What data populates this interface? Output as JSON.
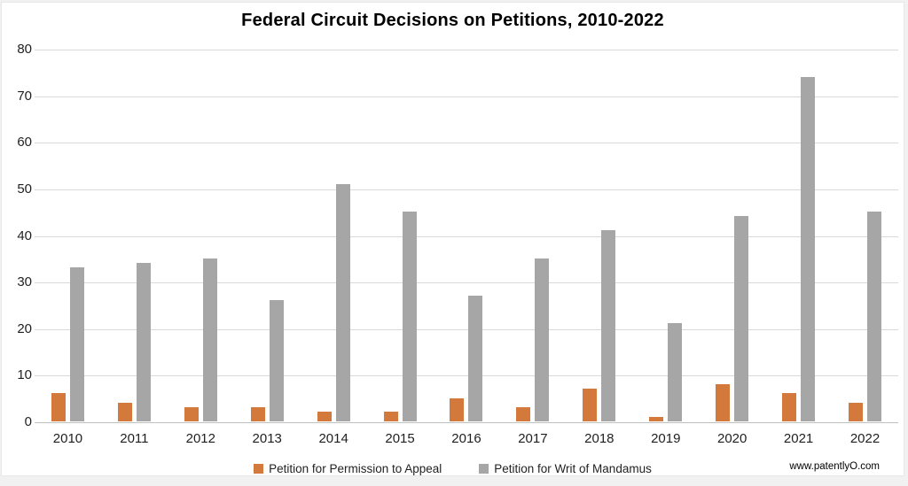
{
  "title": "Federal Circuit Decisions on Petitions, 2010-2022",
  "watermark": "www.patentlyO.com",
  "colors": {
    "permission_to_appeal": "#d2793b",
    "writ_of_mandamus": "#a6a6a6",
    "gridline": "#d9d9d9",
    "axis_line": "#bfbfbf"
  },
  "chart_data": {
    "type": "bar",
    "title": "Federal Circuit Decisions on Petitions, 2010-2022",
    "categories": [
      "2010",
      "2011",
      "2012",
      "2013",
      "2014",
      "2015",
      "2016",
      "2017",
      "2018",
      "2019",
      "2020",
      "2021",
      "2022"
    ],
    "series": [
      {
        "name": "Petition for Permission to Appeal",
        "color": "#d2793b",
        "values": [
          6,
          4,
          3,
          3,
          2,
          2,
          5,
          3,
          7,
          1,
          8,
          6,
          4
        ]
      },
      {
        "name": "Petition for Writ of Mandamus",
        "color": "#a6a6a6",
        "values": [
          33,
          34,
          35,
          26,
          51,
          45,
          27,
          35,
          41,
          21,
          44,
          74,
          45
        ]
      }
    ],
    "xlabel": "",
    "ylabel": "",
    "ylim": [
      0,
      80
    ],
    "yticks": [
      0,
      10,
      20,
      30,
      40,
      50,
      60,
      70,
      80
    ],
    "grid": true,
    "legend_position": "bottom"
  }
}
